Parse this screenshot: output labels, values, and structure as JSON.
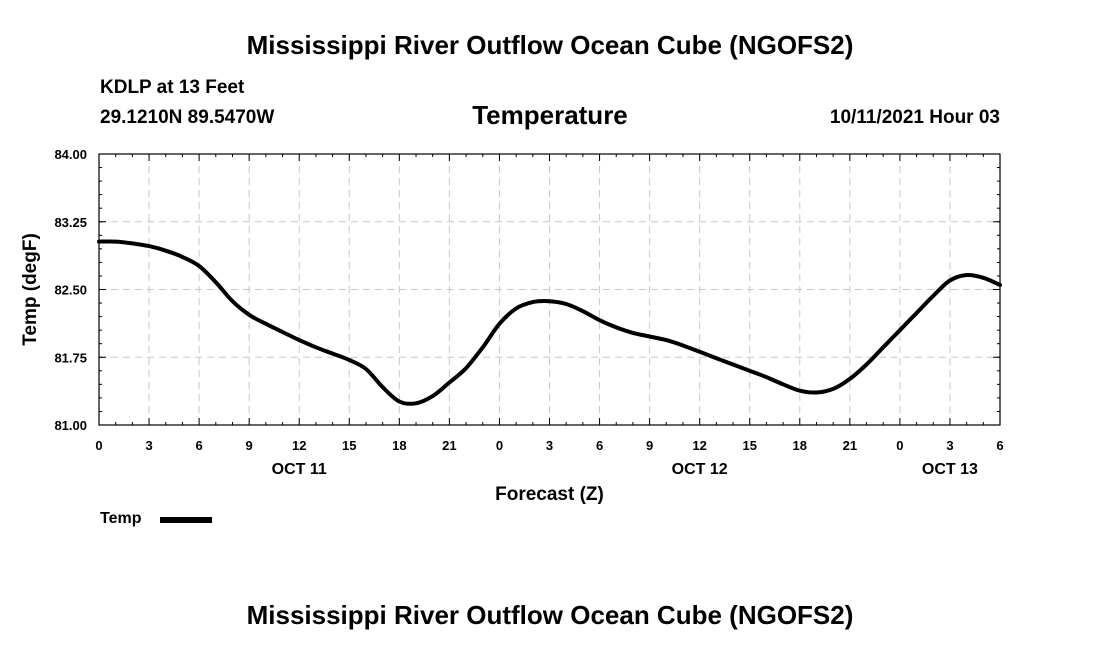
{
  "header": {
    "title": "Mississippi River Outflow Ocean Cube (NGOFS2)",
    "station": "KDLP at 13 Feet",
    "coordinates": "29.1210N  89.5470W",
    "subtitle": "Temperature",
    "datetime": "10/11/2021 Hour 03"
  },
  "footer": {
    "title": "Mississippi River Outflow Ocean Cube (NGOFS2)"
  },
  "legend": {
    "label": "Temp"
  },
  "chart_data": {
    "type": "line",
    "title": "Temperature",
    "xlabel": "Forecast (Z)",
    "ylabel": "Temp (degF)",
    "x_unit": "forecast hour",
    "xlim": [
      0,
      54
    ],
    "ylim": [
      81.0,
      84.0
    ],
    "y_ticks": [
      "81.00",
      "81.75",
      "82.50",
      "83.25",
      "84.00"
    ],
    "x_tick_labels": [
      "0",
      "3",
      "6",
      "9",
      "12",
      "15",
      "18",
      "21",
      "0",
      "3",
      "6",
      "9",
      "12",
      "15",
      "18",
      "21",
      "0",
      "3",
      "6"
    ],
    "date_labels": [
      {
        "label": "OCT 11",
        "hour": 12
      },
      {
        "label": "OCT 12",
        "hour": 36
      },
      {
        "label": "OCT 13",
        "hour": 51
      }
    ],
    "grid": true,
    "legend_position": "bottom-left",
    "series": [
      {
        "name": "Temp",
        "color": "#000000",
        "x": [
          0,
          1,
          2,
          3,
          4,
          5,
          6,
          7,
          8,
          9,
          10,
          11,
          12,
          13,
          14,
          15,
          16,
          17,
          18,
          19,
          20,
          21,
          22,
          23,
          24,
          25,
          26,
          27,
          28,
          29,
          30,
          31,
          32,
          33,
          34,
          35,
          36,
          37,
          38,
          39,
          40,
          41,
          42,
          43,
          44,
          45,
          46,
          47,
          48,
          49,
          50,
          51,
          52,
          53,
          54
        ],
        "y": [
          83.03,
          83.03,
          83.01,
          82.98,
          82.93,
          82.86,
          82.76,
          82.58,
          82.37,
          82.22,
          82.12,
          82.03,
          81.94,
          81.86,
          81.79,
          81.72,
          81.62,
          81.42,
          81.26,
          81.24,
          81.32,
          81.47,
          81.63,
          81.86,
          82.12,
          82.29,
          82.36,
          82.37,
          82.34,
          82.26,
          82.16,
          82.08,
          82.02,
          81.98,
          81.94,
          81.88,
          81.81,
          81.74,
          81.67,
          81.6,
          81.53,
          81.45,
          81.38,
          81.36,
          81.4,
          81.51,
          81.67,
          81.86,
          82.05,
          82.24,
          82.43,
          82.6,
          82.66,
          82.63,
          82.55
        ]
      }
    ]
  }
}
